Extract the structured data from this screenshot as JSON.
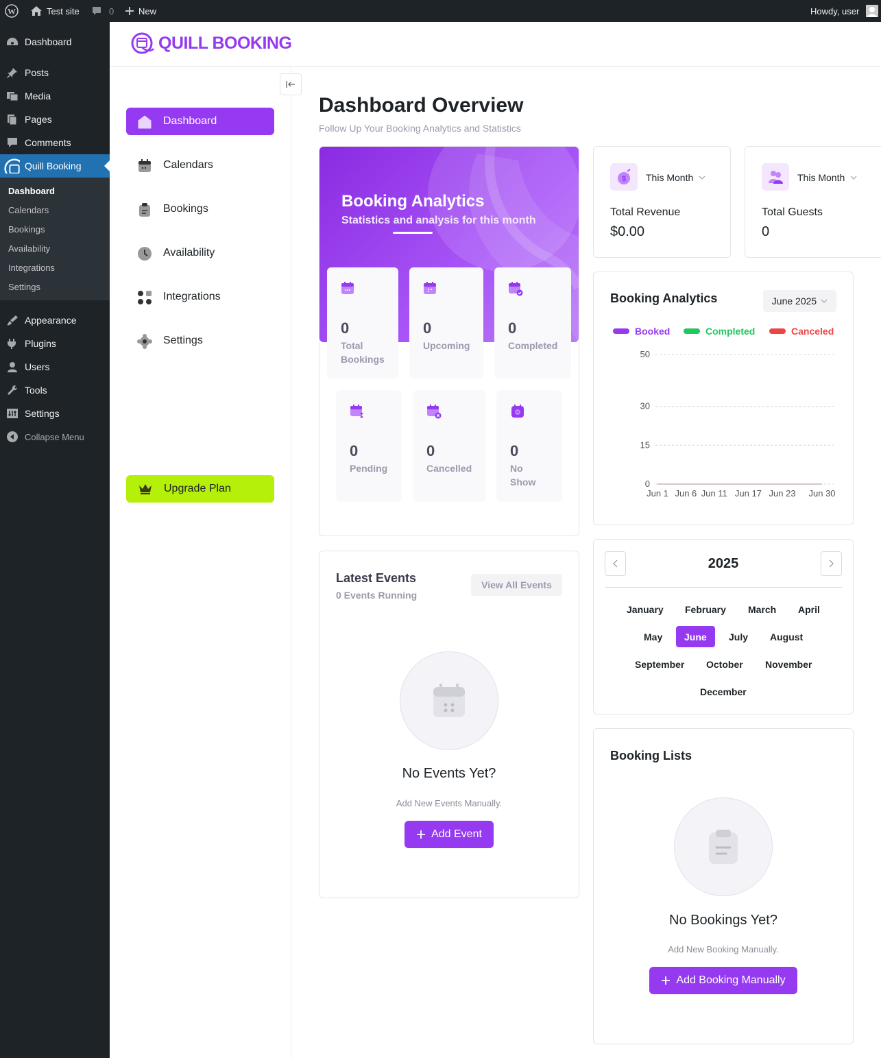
{
  "adminbar": {
    "site_name": "Test site",
    "comments_count": "0",
    "new_label": "New",
    "greeting": "Howdy, user"
  },
  "wp_menu": {
    "items": [
      {
        "label": "Dashboard",
        "icon": "dashboard-icon"
      },
      {
        "label": "Posts",
        "icon": "pin-icon"
      },
      {
        "label": "Media",
        "icon": "media-icon"
      },
      {
        "label": "Pages",
        "icon": "pages-icon"
      },
      {
        "label": "Comments",
        "icon": "comment-icon"
      },
      {
        "label": "Quill Booking",
        "icon": "quill-booking-icon"
      },
      {
        "label": "Appearance",
        "icon": "brush-icon"
      },
      {
        "label": "Plugins",
        "icon": "plug-icon"
      },
      {
        "label": "Users",
        "icon": "user-icon"
      },
      {
        "label": "Tools",
        "icon": "wrench-icon"
      },
      {
        "label": "Settings",
        "icon": "settings-icon"
      },
      {
        "label": "Collapse Menu",
        "icon": "collapse-icon"
      }
    ],
    "submenu": [
      "Dashboard",
      "Calendars",
      "Bookings",
      "Availability",
      "Integrations",
      "Settings"
    ]
  },
  "brand": {
    "name": "QUILL BOOKING",
    "color": "#953af0"
  },
  "plugin_nav": {
    "items": [
      {
        "label": "Dashboard",
        "icon": "home-icon"
      },
      {
        "label": "Calendars",
        "icon": "calendar-icon"
      },
      {
        "label": "Bookings",
        "icon": "clipboard-icon"
      },
      {
        "label": "Availability",
        "icon": "clock-icon"
      },
      {
        "label": "Integrations",
        "icon": "grid-icon"
      },
      {
        "label": "Settings",
        "icon": "gear-icon"
      }
    ],
    "upgrade_label": "Upgrade Plan"
  },
  "header": {
    "title": "Dashboard Overview",
    "subtitle": "Follow Up Your Booking Analytics and Statistics"
  },
  "analytics_hero": {
    "title": "Booking Analytics",
    "subtitle": "Statistics and analysis for this month",
    "stats": [
      {
        "value": "0",
        "label": "Total Bookings"
      },
      {
        "value": "0",
        "label": "Upcoming"
      },
      {
        "value": "0",
        "label": "Completed"
      },
      {
        "value": "0",
        "label": "Pending"
      },
      {
        "value": "0",
        "label": "Cancelled"
      },
      {
        "value": "0",
        "label": "No Show"
      }
    ]
  },
  "kpis": [
    {
      "period": "This Month",
      "label": "Total Revenue",
      "value": "$0.00"
    },
    {
      "period": "This Month",
      "label": "Total Guests",
      "value": "0"
    }
  ],
  "booking_chart": {
    "title": "Booking Analytics",
    "period": "June 2025",
    "legend": [
      {
        "name": "Booked",
        "color": "#953af0"
      },
      {
        "name": "Completed",
        "color": "#22c55e"
      },
      {
        "name": "Canceled",
        "color": "#ef4444"
      }
    ]
  },
  "chart_data": {
    "type": "line",
    "categories": [
      "Jun 1",
      "Jun 6",
      "Jun 11",
      "Jun 17",
      "Jun 23",
      "Jun 30"
    ],
    "series": [
      {
        "name": "Booked",
        "values": [
          0,
          0,
          0,
          0,
          0,
          0
        ]
      },
      {
        "name": "Completed",
        "values": [
          0,
          0,
          0,
          0,
          0,
          0
        ]
      },
      {
        "name": "Canceled",
        "values": [
          0,
          0,
          0,
          0,
          0,
          0
        ]
      }
    ],
    "yticks": [
      0,
      15,
      30,
      50
    ],
    "ylim": [
      0,
      50
    ],
    "grid": true,
    "legend": "top-left"
  },
  "year_picker": {
    "year": "2025",
    "months": [
      "January",
      "February",
      "March",
      "April",
      "May",
      "June",
      "July",
      "August",
      "September",
      "October",
      "November",
      "December"
    ],
    "selected": "June"
  },
  "latest_events": {
    "title": "Latest Events",
    "subtitle": "0 Events Running",
    "view_all": "View All Events",
    "empty_title": "No Events Yet?",
    "empty_sub": "Add New Events Manually.",
    "button": "Add Event"
  },
  "booking_lists": {
    "title": "Booking Lists",
    "empty_title": "No Bookings Yet?",
    "empty_sub": "Add New Booking Manually.",
    "button": "Add Booking Manually"
  }
}
